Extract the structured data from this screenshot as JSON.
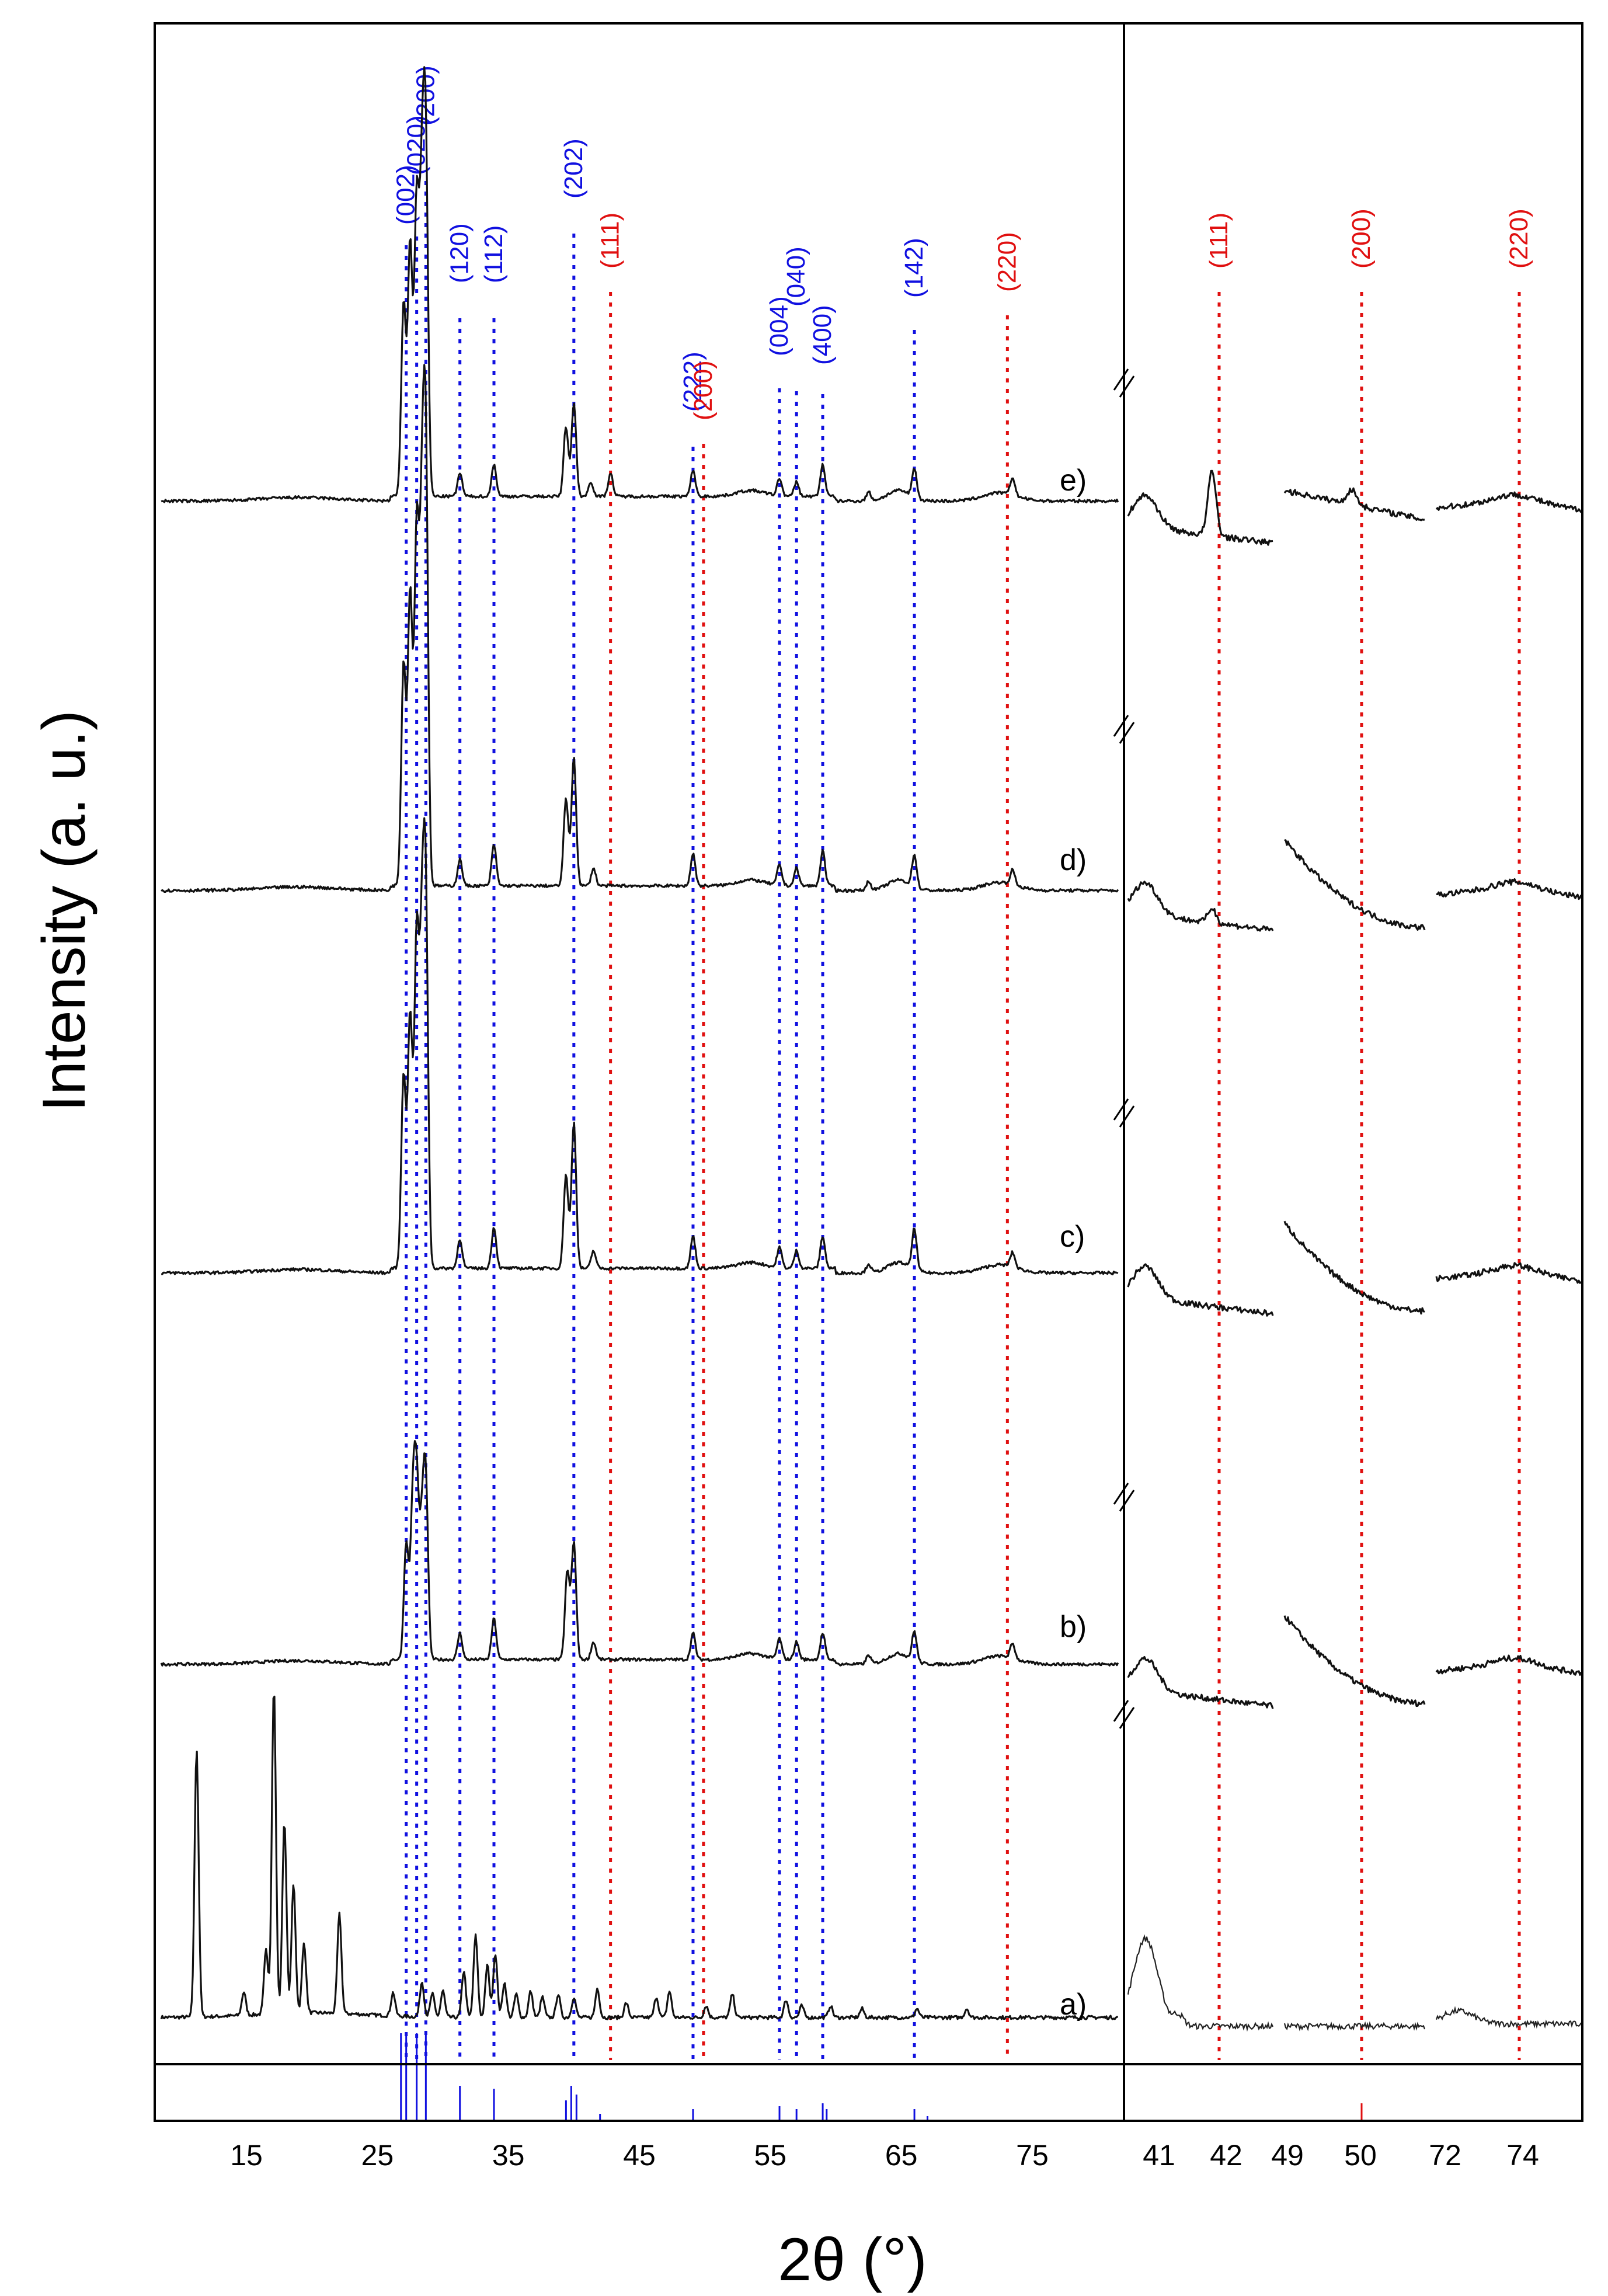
{
  "chart_data": {
    "type": "line",
    "xlabel": "2θ (°)",
    "ylabel": "Intensity (a. u.)",
    "colors": {
      "blue": "#1010e0",
      "red": "#e01010",
      "trace": "#111111"
    },
    "panels": [
      {
        "id": "main",
        "xlim": [
          8,
          82
        ],
        "xticks": [
          "15",
          "25",
          "35",
          "45",
          "55",
          "65",
          "75"
        ],
        "blue_references": [
          {
            "hkl": "(002)",
            "x": 27.2
          },
          {
            "hkl": "(020)",
            "x": 28.0
          },
          {
            "hkl": "(200)",
            "x": 28.7
          },
          {
            "hkl": "(120)",
            "x": 31.3
          },
          {
            "hkl": "(112)",
            "x": 33.9
          },
          {
            "hkl": "(202)",
            "x": 40.0
          },
          {
            "hkl": "(222)",
            "x": 49.1
          },
          {
            "hkl": "(004)",
            "x": 55.7
          },
          {
            "hkl": "(040)",
            "x": 57.0
          },
          {
            "hkl": "(400)",
            "x": 59.0
          },
          {
            "hkl": "(142)",
            "x": 66.0
          }
        ],
        "red_references": [
          {
            "hkl": "(111)",
            "x": 42.8
          },
          {
            "hkl": "(200)",
            "x": 49.9
          },
          {
            "hkl": "(220)",
            "x": 73.1
          }
        ]
      },
      {
        "id": "inset",
        "xticks": [
          "41",
          "42",
          "49",
          "50",
          "72",
          "74"
        ],
        "red_references": [
          {
            "hkl": "(111)",
            "x": 42.0
          },
          {
            "hkl": "(200)",
            "x": 50.0
          },
          {
            "hkl": "(220)",
            "x": 73.5
          }
        ]
      }
    ],
    "series": [
      {
        "name": "a)"
      },
      {
        "name": "b)"
      },
      {
        "name": "c)"
      },
      {
        "name": "d)"
      },
      {
        "name": "e)"
      }
    ]
  }
}
